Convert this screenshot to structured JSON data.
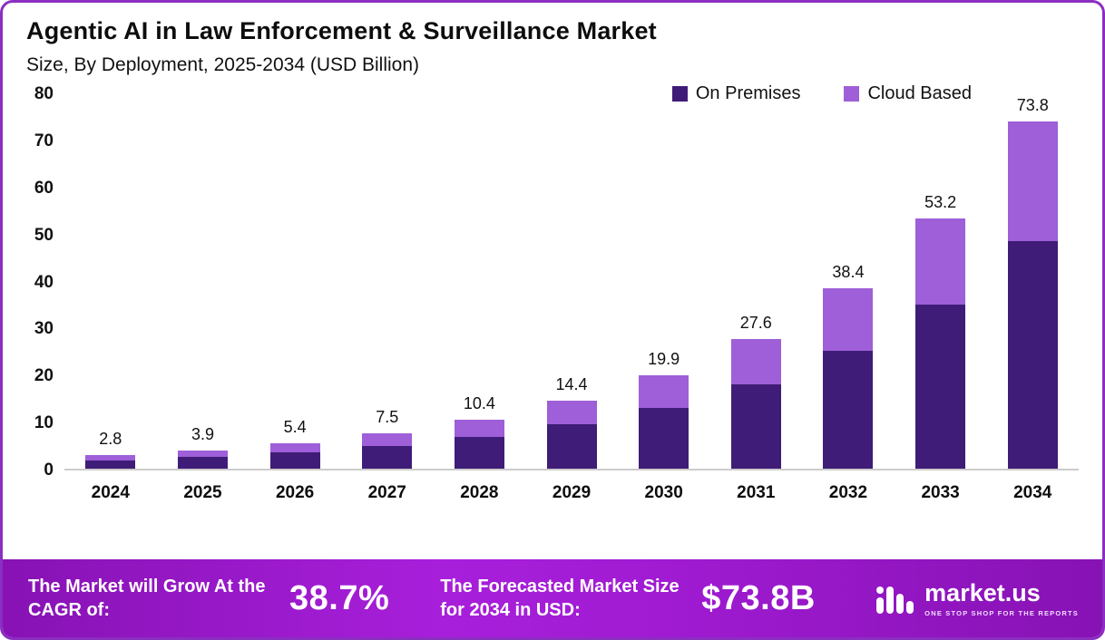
{
  "header": {
    "title": "Agentic AI in Law Enforcement & Surveillance Market",
    "subtitle": "Size, By Deployment, 2025-2034 (USD Billion)"
  },
  "chart_data": {
    "type": "bar",
    "stacked": true,
    "title": "Agentic AI in Law Enforcement & Surveillance Market Size, By Deployment, 2025-2034 (USD Billion)",
    "categories": [
      "2024",
      "2025",
      "2026",
      "2027",
      "2028",
      "2029",
      "2030",
      "2031",
      "2032",
      "2033",
      "2034"
    ],
    "series": [
      {
        "name": "On Premises",
        "color": "#3f1c77",
        "values": [
          1.8,
          2.6,
          3.5,
          4.9,
          6.8,
          9.4,
          13.0,
          17.9,
          25.0,
          34.9,
          48.4
        ]
      },
      {
        "name": "Cloud Based",
        "color": "#9e5fd8",
        "values": [
          1.0,
          1.3,
          1.9,
          2.6,
          3.6,
          5.0,
          6.9,
          9.7,
          13.4,
          18.3,
          25.4
        ]
      }
    ],
    "totals": [
      2.8,
      3.9,
      5.4,
      7.5,
      10.4,
      14.4,
      19.9,
      27.6,
      38.4,
      53.2,
      73.8
    ],
    "total_labels": [
      "2.8",
      "3.9",
      "5.4",
      "7.5",
      "10.4",
      "14.4",
      "19.9",
      "27.6",
      "38.4",
      "53.2",
      "73.8"
    ],
    "xlabel": "",
    "ylabel": "",
    "ylim": [
      0,
      80
    ],
    "ytick_step": 10,
    "grid": false,
    "legend_position": "top-right"
  },
  "footer": {
    "cagr_label": "The Market will Grow At the CAGR of:",
    "cagr_value": "38.7%",
    "forecast_label": "The Forecasted Market Size for 2034 in USD:",
    "forecast_value": "$73.8B",
    "brand": "market.us",
    "brand_tagline": "ONE STOP SHOP FOR THE REPORTS"
  },
  "colors": {
    "on_premises": "#3f1c77",
    "cloud_based": "#9e5fd8",
    "frame_border": "#8a2fc0",
    "banner_gradient_start": "#8712b4",
    "banner_gradient_mid": "#a81fdb",
    "text": "#111111"
  }
}
